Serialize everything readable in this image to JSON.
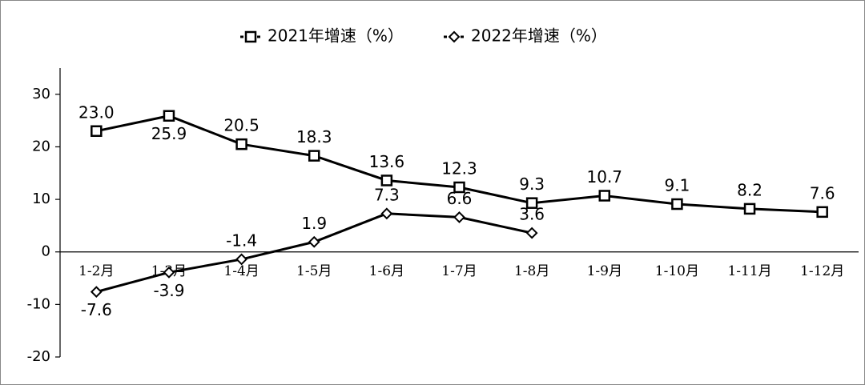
{
  "chart_data": {
    "type": "line",
    "categories": [
      "1-2月",
      "1-3月",
      "1-4月",
      "1-5月",
      "1-6月",
      "1-7月",
      "1-8月",
      "1-9月",
      "1-10月",
      "1-11月",
      "1-12月"
    ],
    "series": [
      {
        "name": "2021年增速（%）",
        "color": "#000000",
        "marker": "square",
        "values": [
          23.0,
          25.9,
          20.5,
          18.3,
          13.6,
          12.3,
          9.3,
          10.7,
          9.1,
          8.2,
          7.6
        ],
        "value_labels": [
          "23.0",
          "25.9",
          "20.5",
          "18.3",
          "13.6",
          "12.3",
          "9.3",
          "10.7",
          "9.1",
          "8.2",
          "7.6"
        ]
      },
      {
        "name": "2022年增速（%）",
        "color": "#000000",
        "marker": "diamond",
        "values": [
          -7.6,
          -3.9,
          -1.4,
          1.9,
          7.3,
          6.6,
          3.6,
          null,
          null,
          null,
          null
        ],
        "value_labels": [
          "-7.6",
          "-3.9",
          "-1.4",
          "1.9",
          "7.3",
          "6.6",
          "3.6",
          null,
          null,
          null,
          null
        ]
      }
    ],
    "ylim": [
      -20,
      35
    ],
    "yticks": [
      -20,
      -10,
      0,
      10,
      20,
      30
    ],
    "legend": "top",
    "grid": false
  }
}
